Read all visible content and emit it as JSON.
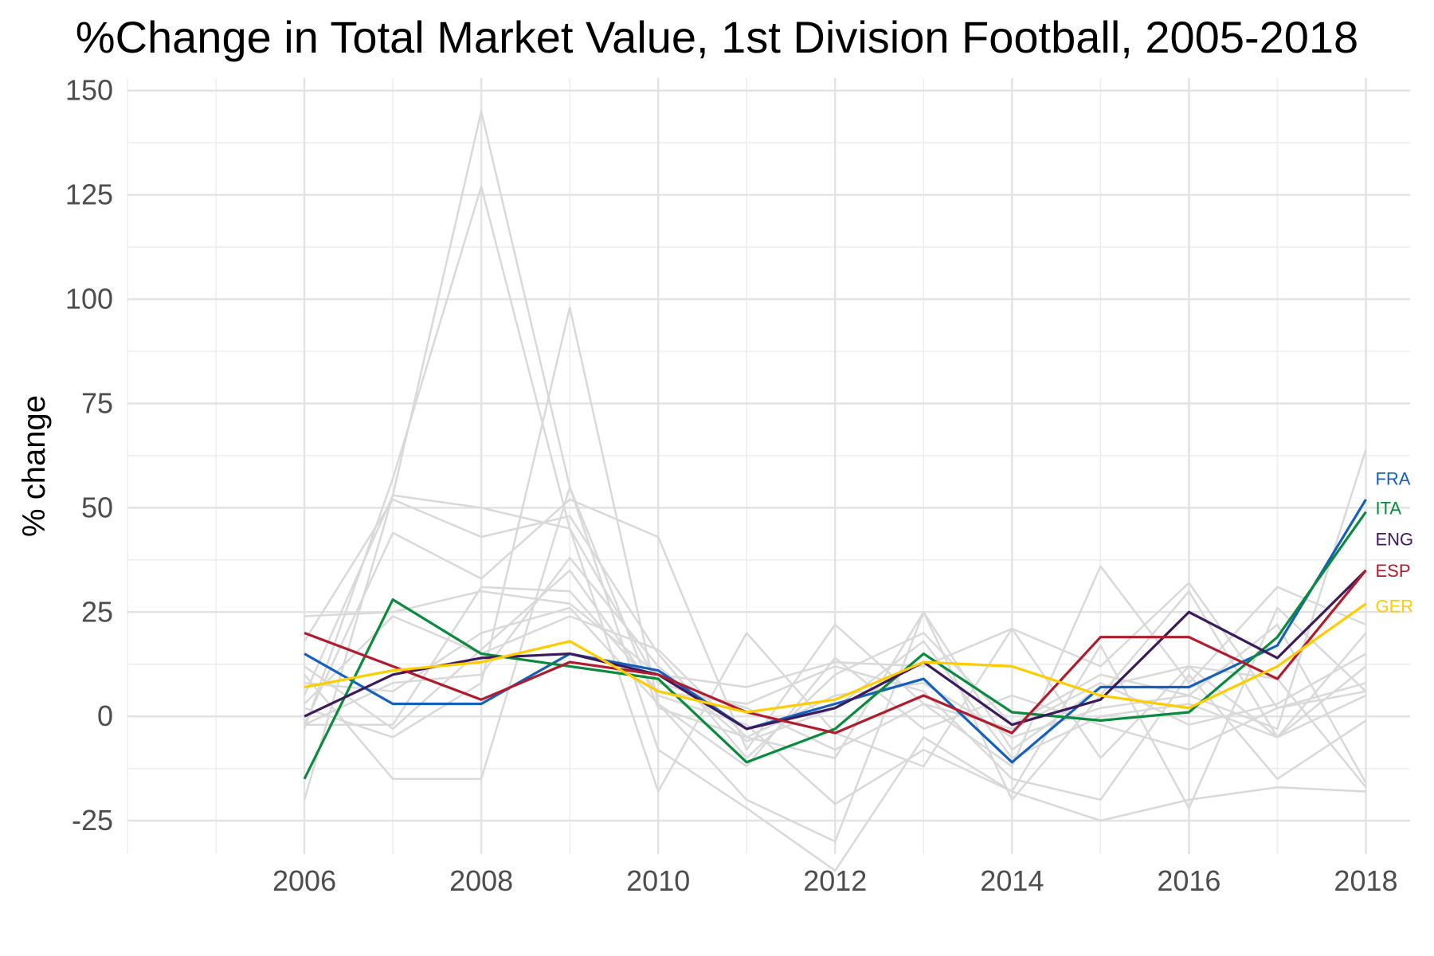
{
  "chart_data": {
    "type": "line",
    "title": "%Change in Total Market Value, 1st Division Football, 2005-2018",
    "xlabel": "",
    "ylabel": "% change",
    "xlim": [
      2004.0,
      2018.5
    ],
    "ylim": [
      -33,
      153
    ],
    "x": [
      2006,
      2007,
      2008,
      2009,
      2010,
      2011,
      2012,
      2013,
      2014,
      2015,
      2016,
      2017,
      2018
    ],
    "xticks": [
      2006,
      2008,
      2010,
      2012,
      2014,
      2016,
      2018
    ],
    "xtick_labels": [
      "2006",
      "2008",
      "2010",
      "2012",
      "2014",
      "2016",
      "2018"
    ],
    "yticks": [
      -25,
      0,
      25,
      50,
      75,
      100,
      125,
      150
    ],
    "ytick_labels": [
      "-25",
      "0",
      "25",
      "50",
      "75",
      "100",
      "125",
      "150"
    ],
    "grid": true,
    "legend": "direct labels at right end of lines",
    "highlight_series": [
      {
        "name": "FRA",
        "color": "#1560bd",
        "values": [
          15,
          3,
          3,
          15,
          11,
          -3,
          3,
          9,
          -11,
          7,
          7,
          17,
          52
        ]
      },
      {
        "name": "ITA",
        "color": "#0a8a3d",
        "values": [
          -15,
          28,
          15,
          12,
          9,
          -11,
          -3,
          15,
          1,
          -1,
          1,
          19,
          49
        ]
      },
      {
        "name": "ENG",
        "color": "#3d1a5b",
        "values": [
          0,
          10,
          14,
          15,
          10,
          -3,
          2,
          13,
          -2,
          4,
          25,
          14,
          35
        ]
      },
      {
        "name": "ESP",
        "color": "#b01c2e",
        "values": [
          20,
          12,
          4,
          13,
          10,
          1,
          -4,
          5,
          -4,
          19,
          19,
          9,
          35
        ]
      },
      {
        "name": "GER",
        "color": "#ffcc00",
        "values": [
          7,
          11,
          13,
          18,
          6,
          1,
          4,
          13,
          12,
          5,
          2,
          12,
          27
        ]
      }
    ],
    "background_series": [
      {
        "x": [
          2006,
          2007,
          2008,
          2009,
          2010,
          2011,
          2012,
          2013,
          2014,
          2015,
          2016,
          2017,
          2018
        ],
        "values": [
          5,
          53,
          145,
          55,
          2,
          -5,
          5,
          8,
          -5,
          2,
          5,
          -3,
          64
        ]
      },
      {
        "x": [
          2006,
          2007,
          2008,
          2009,
          2010,
          2011,
          2012,
          2013,
          2014,
          2015,
          2016,
          2017,
          2018
        ],
        "values": [
          -3,
          57,
          127,
          45,
          8,
          2,
          -8,
          3,
          -3,
          8,
          -2,
          3,
          15
        ]
      },
      {
        "x": [
          2006,
          2007,
          2008,
          2009,
          2010,
          2011,
          2012,
          2013,
          2014,
          2015,
          2016,
          2017,
          2018
        ],
        "values": [
          2,
          -5,
          8,
          98,
          3,
          -20,
          -30,
          25,
          -20,
          5,
          30,
          -5,
          20
        ]
      },
      {
        "x": [
          2006,
          2007,
          2008,
          2009,
          2010,
          2011,
          2012,
          2013,
          2014,
          2015,
          2016,
          2017,
          2018
        ],
        "values": [
          -2,
          44,
          33,
          52,
          43,
          -8,
          22,
          3,
          -12,
          36,
          8,
          31,
          22
        ]
      },
      {
        "x": [
          2006,
          2007,
          2008,
          2009,
          2010,
          2011,
          2012,
          2013,
          2014,
          2015,
          2016,
          2017,
          2018
        ],
        "values": [
          -20,
          53,
          50,
          45,
          -18,
          20,
          -4,
          -12,
          21,
          -10,
          12,
          -5,
          5
        ]
      },
      {
        "x": [
          2006,
          2007,
          2008,
          2009,
          2010,
          2011,
          2012,
          2013,
          2014,
          2015,
          2016,
          2017,
          2018
        ],
        "values": [
          10,
          -15,
          -15,
          55,
          -8,
          -22,
          -37,
          -5,
          -18,
          -25,
          -20,
          -17,
          -18
        ]
      },
      {
        "x": [
          2006,
          2007,
          2008,
          2009,
          2010,
          2011,
          2012,
          2013,
          2014,
          2015,
          2016,
          2017,
          2018
        ],
        "values": [
          24,
          25,
          30,
          27,
          10,
          7,
          13,
          12,
          21,
          12,
          32,
          2,
          8
        ]
      },
      {
        "x": [
          2006,
          2007,
          2008,
          2009,
          2010,
          2011,
          2012,
          2013,
          2014,
          2015,
          2016,
          2017,
          2018
        ],
        "values": [
          18,
          52,
          43,
          48,
          15,
          -10,
          10,
          20,
          -2,
          10,
          5,
          22,
          -16
        ]
      },
      {
        "x": [
          2006,
          2007,
          2008,
          2009,
          2010,
          2011,
          2012,
          2013,
          2014,
          2015,
          2016,
          2017,
          2018
        ],
        "values": [
          12,
          -3,
          16,
          35,
          5,
          -2,
          -21,
          -8,
          -18,
          17,
          -22,
          26,
          6
        ]
      },
      {
        "x": [
          2006,
          2007,
          2008,
          2009,
          2010,
          2011,
          2012,
          2013,
          2014,
          2015,
          2016,
          2017,
          2018
        ],
        "values": [
          -2,
          -2,
          31,
          30,
          6,
          3,
          12,
          6,
          -15,
          -20,
          10,
          -15,
          -1
        ]
      },
      {
        "x": [
          2006,
          2007,
          2008,
          2009,
          2010,
          2011,
          2012,
          2013,
          2014,
          2015,
          2016,
          2017,
          2018
        ],
        "values": [
          3,
          24,
          15,
          24,
          16,
          -5,
          -10,
          25,
          -8,
          7,
          12,
          9,
          -17
        ]
      },
      {
        "x": [
          2006,
          2007,
          2008,
          2009,
          2010,
          2011,
          2012,
          2013,
          2014,
          2015,
          2016,
          2017,
          2018
        ],
        "values": [
          8,
          6,
          20,
          26,
          3,
          -12,
          14,
          -3,
          5,
          -2,
          -8,
          2,
          6
        ]
      },
      {
        "x": [
          2006,
          2007,
          2008,
          2009,
          2010,
          2011,
          2012,
          2013,
          2014,
          2015,
          2016,
          2017,
          2018
        ],
        "values": [
          -2,
          8,
          10,
          38,
          12,
          -6,
          2,
          18,
          -10,
          0,
          3,
          -5,
          12
        ]
      }
    ],
    "background_color": "#d9d9d9"
  }
}
